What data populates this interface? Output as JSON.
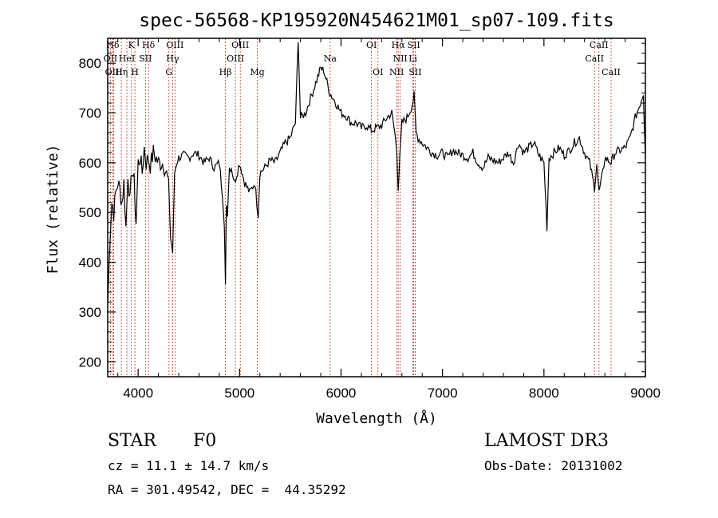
{
  "chart_data": {
    "type": "line",
    "title": "spec-56568-KP195920N454621M01_sp07-109.fits",
    "xlabel": "Wavelength (Å)",
    "ylabel": "Flux (relative)",
    "xlim": [
      3700,
      9000
    ],
    "ylim": [
      170,
      850
    ],
    "xticks": [
      "4000",
      "5000",
      "6000",
      "7000",
      "8000",
      "9000"
    ],
    "yticks": [
      "200",
      "300",
      "400",
      "500",
      "600",
      "700",
      "800"
    ],
    "grid": false,
    "series": [
      {
        "x": [
          3700,
          3720,
          3740,
          3760,
          3780,
          3800,
          3820,
          3840,
          3860,
          3880,
          3900,
          3920,
          3940,
          3960,
          3980,
          4000,
          4020,
          4040,
          4060,
          4080,
          4100,
          4120,
          4150,
          4200,
          4250,
          4300,
          4320,
          4340,
          4360,
          4380,
          4400,
          4450,
          4500,
          4550,
          4600,
          4650,
          4700,
          4750,
          4800,
          4830,
          4850,
          4861,
          4870,
          4880,
          4900,
          4920,
          4950,
          5000,
          5050,
          5100,
          5150,
          5170,
          5184,
          5200,
          5250,
          5300,
          5350,
          5400,
          5450,
          5500,
          5550,
          5578,
          5600,
          5650,
          5700,
          5750,
          5800,
          5830,
          5850,
          5890,
          5950,
          6000,
          6050,
          6100,
          6150,
          6200,
          6250,
          6300,
          6350,
          6400,
          6450,
          6500,
          6530,
          6550,
          6563,
          6580,
          6600,
          6650,
          6700,
          6720,
          6740,
          6760,
          6800,
          6850,
          6900,
          6950,
          7000,
          7050,
          7100,
          7150,
          7200,
          7250,
          7300,
          7350,
          7400,
          7450,
          7500,
          7550,
          7600,
          7650,
          7700,
          7750,
          7800,
          7850,
          7900,
          7950,
          8000,
          8030,
          8050,
          8100,
          8150,
          8200,
          8250,
          8300,
          8350,
          8400,
          8450,
          8498,
          8520,
          8542,
          8580,
          8600,
          8662,
          8700,
          8750,
          8800,
          8850,
          8900,
          8950,
          8980,
          9000
        ],
        "y": [
          310,
          440,
          520,
          500,
          540,
          560,
          545,
          520,
          560,
          470,
          580,
          520,
          590,
          560,
          480,
          600,
          610,
          580,
          630,
          600,
          610,
          595,
          620,
          600,
          600,
          560,
          450,
          420,
          580,
          600,
          610,
          615,
          610,
          620,
          615,
          600,
          610,
          590,
          600,
          540,
          480,
          350,
          520,
          500,
          590,
          590,
          560,
          600,
          560,
          540,
          560,
          520,
          495,
          580,
          590,
          605,
          600,
          620,
          640,
          650,
          680,
          850,
          690,
          700,
          730,
          760,
          790,
          785,
          770,
          740,
          720,
          700,
          695,
          680,
          680,
          670,
          675,
          665,
          670,
          675,
          690,
          700,
          660,
          620,
          550,
          610,
          680,
          690,
          715,
          735,
          660,
          650,
          640,
          630,
          620,
          615,
          620,
          610,
          625,
          620,
          615,
          610,
          620,
          600,
          590,
          610,
          605,
          600,
          610,
          620,
          600,
          640,
          620,
          630,
          640,
          615,
          600,
          470,
          610,
          620,
          630,
          615,
          625,
          640,
          650,
          620,
          600,
          550,
          600,
          540,
          580,
          610,
          600,
          620,
          625,
          630,
          650,
          690,
          720,
          740,
          610
        ]
      }
    ],
    "line_labels": [
      {
        "text": "Hδ",
        "x": 3750,
        "row": 0
      },
      {
        "text": "K",
        "x": 3934,
        "row": 0
      },
      {
        "text": "Hδ",
        "x": 4102,
        "row": 0
      },
      {
        "text": "OIII",
        "x": 4363,
        "row": 0
      },
      {
        "text": "OIII",
        "x": 5007,
        "row": 0
      },
      {
        "text": "OI",
        "x": 6300,
        "row": 0
      },
      {
        "text": "Hα",
        "x": 6563,
        "row": 0
      },
      {
        "text": "SII",
        "x": 6717,
        "row": 0
      },
      {
        "text": "CaII",
        "x": 8542,
        "row": 0
      },
      {
        "text": "OII",
        "x": 3727,
        "row": 1
      },
      {
        "text": "HeI",
        "x": 3889,
        "row": 1
      },
      {
        "text": "SII",
        "x": 4072,
        "row": 1
      },
      {
        "text": "Hγ",
        "x": 4340,
        "row": 1
      },
      {
        "text": "OIII",
        "x": 4959,
        "row": 1
      },
      {
        "text": "Na",
        "x": 5893,
        "row": 1
      },
      {
        "text": "NII",
        "x": 6583,
        "row": 1
      },
      {
        "text": "Li",
        "x": 6708,
        "row": 1
      },
      {
        "text": "CaII",
        "x": 8498,
        "row": 1
      },
      {
        "text": "OIII",
        "x": 3760,
        "row": 2
      },
      {
        "text": "Hη",
        "x": 3835,
        "row": 2
      },
      {
        "text": "H",
        "x": 3968,
        "row": 2
      },
      {
        "text": "G",
        "x": 4304,
        "row": 2
      },
      {
        "text": "Hβ",
        "x": 4861,
        "row": 2
      },
      {
        "text": "Mg",
        "x": 5175,
        "row": 2
      },
      {
        "text": "OI",
        "x": 6364,
        "row": 2
      },
      {
        "text": "NII",
        "x": 6548,
        "row": 2
      },
      {
        "text": "SII",
        "x": 6731,
        "row": 2
      },
      {
        "text": "CaII",
        "x": 8662,
        "row": 2
      }
    ],
    "marker_lines": [
      3727,
      3750,
      3760,
      3835,
      3889,
      3934,
      3968,
      4072,
      4102,
      4304,
      4340,
      4363,
      4861,
      4959,
      5007,
      5175,
      5893,
      6300,
      6364,
      6548,
      6563,
      6583,
      6708,
      6717,
      6731,
      8498,
      8542,
      8662
    ],
    "colors": {
      "spectrum": "#000000",
      "markers": "#c0392b"
    }
  },
  "info": {
    "object_class": "STAR",
    "subclass": "F0",
    "survey": "LAMOST DR3",
    "redshift": "cz = 11.1 ± 14.7 km/s",
    "obs_date": "Obs-Date: 20131002",
    "coords": "RA = 301.49542, DEC =  44.35292"
  }
}
